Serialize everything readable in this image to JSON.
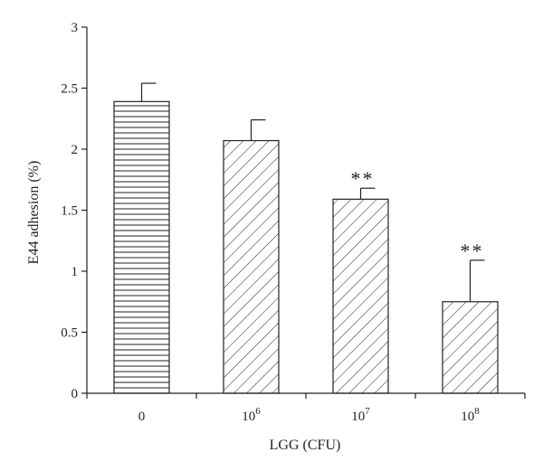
{
  "chart_data": {
    "type": "bar",
    "title": "",
    "xlabel": "LGG (CFU)",
    "ylabel": "E44 adhesion (%)",
    "ylim": [
      0,
      3
    ],
    "yticks": [
      "0",
      "0.5",
      "1",
      "1.5",
      "2",
      "2.5",
      "3"
    ],
    "categories": [
      {
        "base": "0",
        "exp": ""
      },
      {
        "base": "10",
        "exp": "6"
      },
      {
        "base": "10",
        "exp": "7"
      },
      {
        "base": "10",
        "exp": "8"
      }
    ],
    "values": [
      2.39,
      2.07,
      1.59,
      0.75
    ],
    "errors": [
      0.15,
      0.17,
      0.09,
      0.34
    ],
    "patterns": [
      "horizontal",
      "diagonal",
      "diagonal",
      "diagonal"
    ],
    "annotations": [
      "",
      "",
      "**",
      "**"
    ],
    "grid": false,
    "legend": "none"
  }
}
